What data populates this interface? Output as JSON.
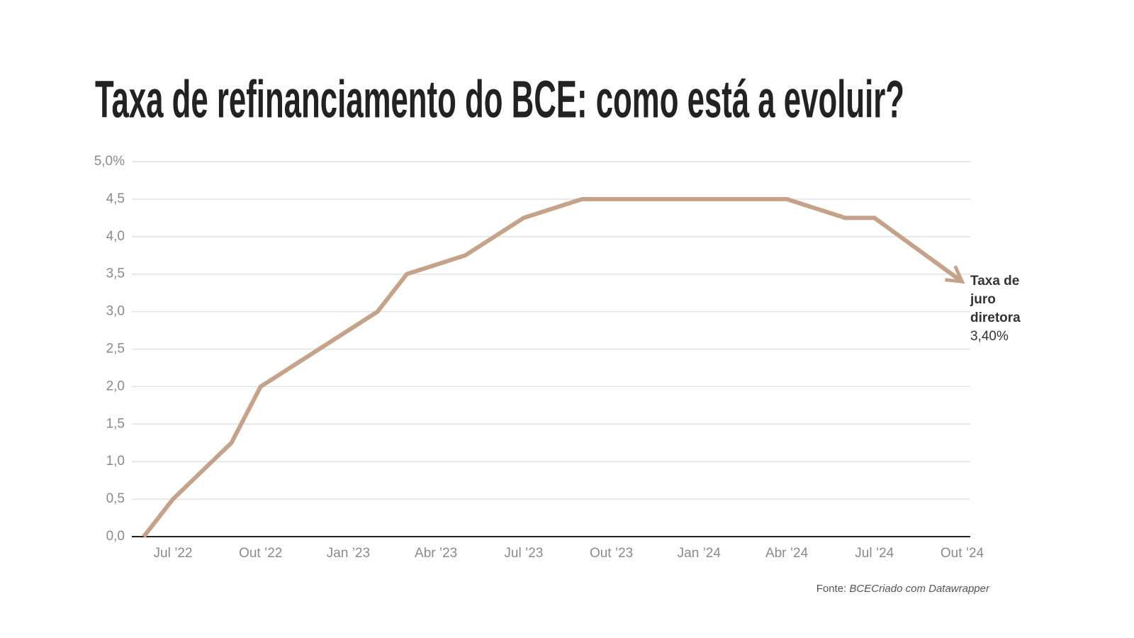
{
  "chart_data": {
    "type": "line",
    "title": "Taxa de refinanciamento do BCE: como está a evoluir?",
    "x": [
      "2022-06",
      "2022-07",
      "2022-09",
      "2022-10",
      "2023-02",
      "2023-03",
      "2023-05",
      "2023-07",
      "2023-09",
      "2024-04",
      "2024-06",
      "2024-07",
      "2024-10"
    ],
    "series": [
      {
        "name": "Taxa de juro diretora",
        "color": "#c4a38a",
        "values": [
          0,
          0.5,
          1.25,
          2.0,
          3.0,
          3.5,
          3.75,
          4.25,
          4.5,
          4.5,
          4.25,
          4.25,
          3.4
        ],
        "value_labels": [
          null,
          null,
          null,
          null,
          null,
          null,
          null,
          null,
          null,
          null,
          null,
          null,
          "3,40%"
        ]
      }
    ],
    "ylim": [
      0,
      5
    ],
    "yticks": [
      {
        "value": 0,
        "label": "0,0"
      },
      {
        "value": 0.5,
        "label": "0,5"
      },
      {
        "value": 1,
        "label": "1,0"
      },
      {
        "value": 1.5,
        "label": "1,5"
      },
      {
        "value": 2,
        "label": "2,0"
      },
      {
        "value": 2.5,
        "label": "2,5"
      },
      {
        "value": 3,
        "label": "3,0"
      },
      {
        "value": 3.5,
        "label": "3,5"
      },
      {
        "value": 4,
        "label": "4,0"
      },
      {
        "value": 4.5,
        "label": "4,5"
      },
      {
        "value": 5,
        "label": "5,0%"
      }
    ],
    "xticks": [
      {
        "value": "2022-07",
        "label": "Jul ’22"
      },
      {
        "value": "2022-10",
        "label": "Out ’22"
      },
      {
        "value": "2023-01",
        "label": "Jan ’23"
      },
      {
        "value": "2023-04",
        "label": "Abr ’23"
      },
      {
        "value": "2023-07",
        "label": "Jul ’23"
      },
      {
        "value": "2023-10",
        "label": "Out ’23"
      },
      {
        "value": "2024-01",
        "label": "Jan ’24"
      },
      {
        "value": "2024-04",
        "label": "Abr ’24"
      },
      {
        "value": "2024-07",
        "label": "Jul ’24"
      },
      {
        "value": "2024-10",
        "label": "Out ’24"
      }
    ],
    "grid": true,
    "source_prefix": "Fonte:",
    "source": "BCE",
    "credit": "Criado com Datawrapper"
  }
}
